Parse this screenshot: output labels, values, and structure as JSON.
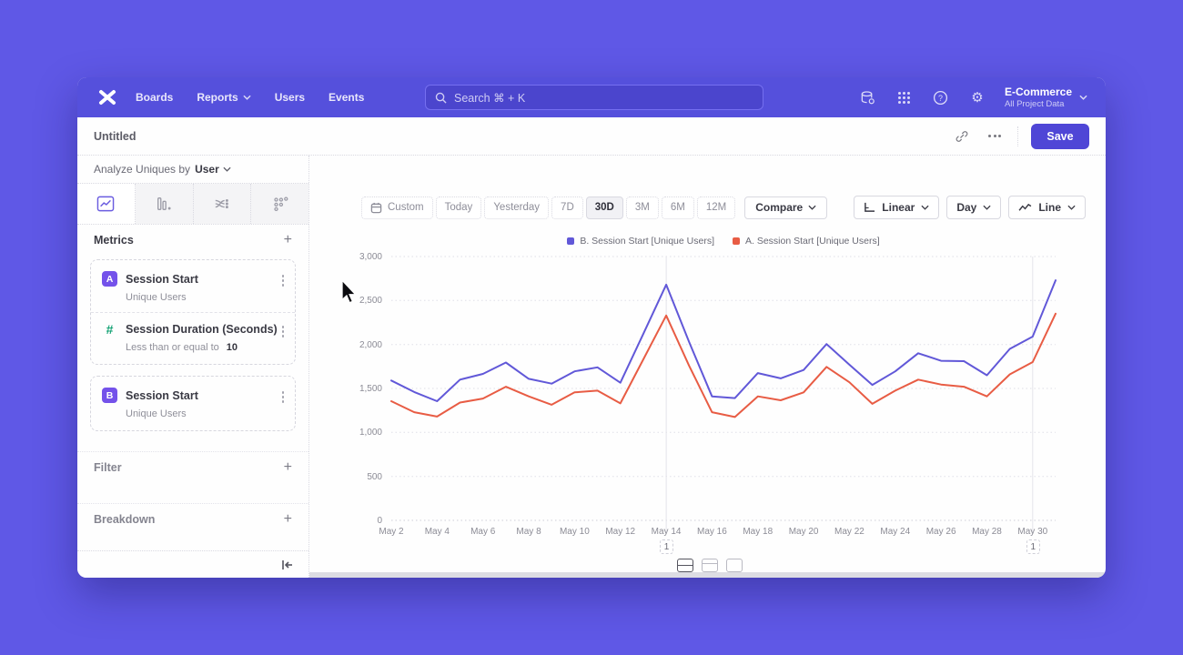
{
  "header": {
    "nav": [
      "Boards",
      "Reports",
      "Users",
      "Events"
    ],
    "search_placeholder": "Search  ⌘ + K",
    "project_name": "E-Commerce",
    "project_subtitle": "All Project Data"
  },
  "title_bar": {
    "title": "Untitled",
    "save_label": "Save"
  },
  "sidebar": {
    "analyze_label": "Analyze Uniques by",
    "analyze_value": "User",
    "metrics_header": "Metrics",
    "metrics": [
      {
        "badge": "A",
        "name": "Session Start",
        "subtitle": "Unique Users"
      },
      {
        "badge": "#",
        "name": "Session Duration (Seconds)",
        "condition": "Less than or equal to",
        "condition_value": "10"
      },
      {
        "badge": "B",
        "name": "Session Start",
        "subtitle": "Unique Users"
      }
    ],
    "filter_header": "Filter",
    "breakdown_header": "Breakdown"
  },
  "controls": {
    "ranges": [
      "Custom",
      "Today",
      "Yesterday",
      "7D",
      "30D",
      "3M",
      "6M",
      "12M"
    ],
    "active_range": "30D",
    "compare_label": "Compare",
    "scale_label": "Linear",
    "interval_label": "Day",
    "chart_type_label": "Line"
  },
  "icons": {
    "gear": "⚙",
    "help": "?"
  },
  "chart_data": {
    "type": "line",
    "x": [
      "May 2",
      "May 3",
      "May 4",
      "May 5",
      "May 6",
      "May 7",
      "May 8",
      "May 9",
      "May 10",
      "May 11",
      "May 12",
      "May 13",
      "May 14",
      "May 15",
      "May 16",
      "May 17",
      "May 18",
      "May 19",
      "May 20",
      "May 21",
      "May 22",
      "May 23",
      "May 24",
      "May 25",
      "May 26",
      "May 27",
      "May 28",
      "May 29",
      "May 30",
      "May 31"
    ],
    "x_tick_every": 2,
    "ylim": [
      0,
      3000
    ],
    "y_ticks": [
      0,
      500,
      1000,
      1500,
      2000,
      2500,
      3000
    ],
    "grid": "horizontal-dotted",
    "legend_position": "top-center",
    "series": [
      {
        "name": "B. Session Start [Unique Users]",
        "color": "#6158d8",
        "values": [
          1590,
          1460,
          1355,
          1600,
          1665,
          1795,
          1610,
          1555,
          1695,
          1740,
          1565,
          2120,
          2680,
          2030,
          1410,
          1390,
          1675,
          1615,
          1710,
          2005,
          1770,
          1540,
          1695,
          1900,
          1815,
          1810,
          1650,
          1950,
          2090,
          2730
        ]
      },
      {
        "name": "A. Session Start [Unique Users]",
        "color": "#e85c44",
        "values": [
          1355,
          1230,
          1180,
          1340,
          1385,
          1520,
          1410,
          1315,
          1455,
          1475,
          1330,
          1830,
          2330,
          1760,
          1230,
          1175,
          1410,
          1365,
          1455,
          1745,
          1570,
          1325,
          1475,
          1600,
          1545,
          1520,
          1410,
          1660,
          1800,
          2350
        ]
      }
    ],
    "annotations": [
      {
        "x_index": 12,
        "label": "1"
      },
      {
        "x_index": 28,
        "label": "1"
      }
    ]
  }
}
